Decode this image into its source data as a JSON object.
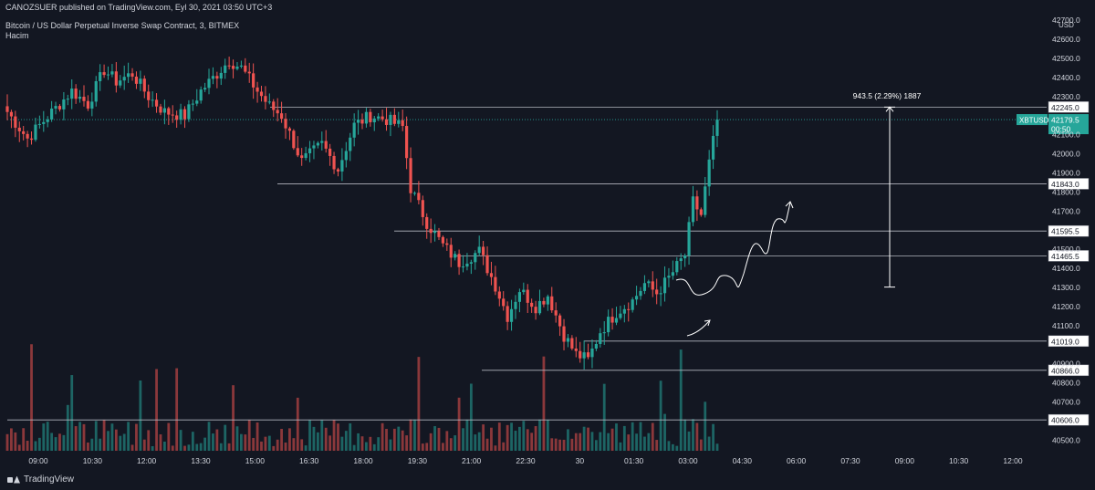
{
  "header": {
    "published": "CANOZSUER published on TradingView.com, Eyl 30, 2021 03:50 UTC+3",
    "symbol_line": "Bitcoin / US Dollar Perpetual Inverse Swap Contract, 3, BITMEX",
    "indicator": "Hacim"
  },
  "footer": {
    "brand": "TradingView"
  },
  "colors": {
    "background": "#131722",
    "up": "#26a69a",
    "down": "#ef5350",
    "text": "#d1d4dc",
    "price_badge": "#26a69a",
    "line": "#b2b5be"
  },
  "chart_data": {
    "type": "candlestick",
    "currency": "USD",
    "y_range": [
      40430,
      42720
    ],
    "y_ticks": [
      42700,
      42600,
      42500,
      42400,
      42300,
      42100,
      42000,
      41900,
      41800,
      41700,
      41500,
      41400,
      41300,
      41200,
      41100,
      40900,
      40800,
      40700,
      40500
    ],
    "x_ticks": [
      "09:00",
      "10:30",
      "12:00",
      "13:30",
      "15:00",
      "16:30",
      "18:00",
      "19:30",
      "21:00",
      "22:30",
      "30",
      "01:30",
      "03:00",
      "04:30",
      "06:00",
      "07:30",
      "09:00",
      "10:30",
      "12:00"
    ],
    "current_price": {
      "symbol": "XBTUSD",
      "price": "42179.5",
      "countdown": "00:50"
    },
    "horizontal_levels": [
      "42245.0",
      "41843.0",
      "41595.5",
      "41465.5",
      "41019.0",
      "40866.0",
      "40606.0"
    ],
    "measurement": {
      "label": "943.5 (2.29%) 1887"
    },
    "close_path": [
      [
        0,
        42220
      ],
      [
        5,
        42080
      ],
      [
        8,
        42150
      ],
      [
        12,
        42240
      ],
      [
        16,
        42330
      ],
      [
        20,
        42260
      ],
      [
        24,
        42440
      ],
      [
        27,
        42380
      ],
      [
        31,
        42420
      ],
      [
        35,
        42300
      ],
      [
        39,
        42220
      ],
      [
        44,
        42200
      ],
      [
        48,
        42330
      ],
      [
        52,
        42420
      ],
      [
        55,
        42490
      ],
      [
        58,
        42450
      ],
      [
        62,
        42330
      ],
      [
        65,
        42250
      ],
      [
        68,
        42200
      ],
      [
        73,
        41960
      ],
      [
        78,
        42050
      ],
      [
        82,
        41920
      ],
      [
        86,
        42150
      ],
      [
        90,
        42200
      ],
      [
        94,
        42180
      ],
      [
        98,
        42140
      ],
      [
        100,
        41820
      ],
      [
        104,
        41640
      ],
      [
        108,
        41520
      ],
      [
        112,
        41430
      ],
      [
        117,
        41490
      ],
      [
        121,
        41310
      ],
      [
        124,
        41150
      ],
      [
        127,
        41290
      ],
      [
        131,
        41200
      ],
      [
        134,
        41260
      ],
      [
        138,
        41050
      ],
      [
        141,
        40950
      ],
      [
        144,
        40920
      ],
      [
        147,
        41070
      ],
      [
        151,
        41170
      ],
      [
        155,
        41230
      ],
      [
        158,
        41320
      ],
      [
        161,
        41270
      ],
      [
        164,
        41350
      ],
      [
        168,
        41470
      ],
      [
        170,
        41750
      ],
      [
        172,
        41680
      ],
      [
        174,
        41950
      ],
      [
        176,
        42180
      ]
    ]
  }
}
